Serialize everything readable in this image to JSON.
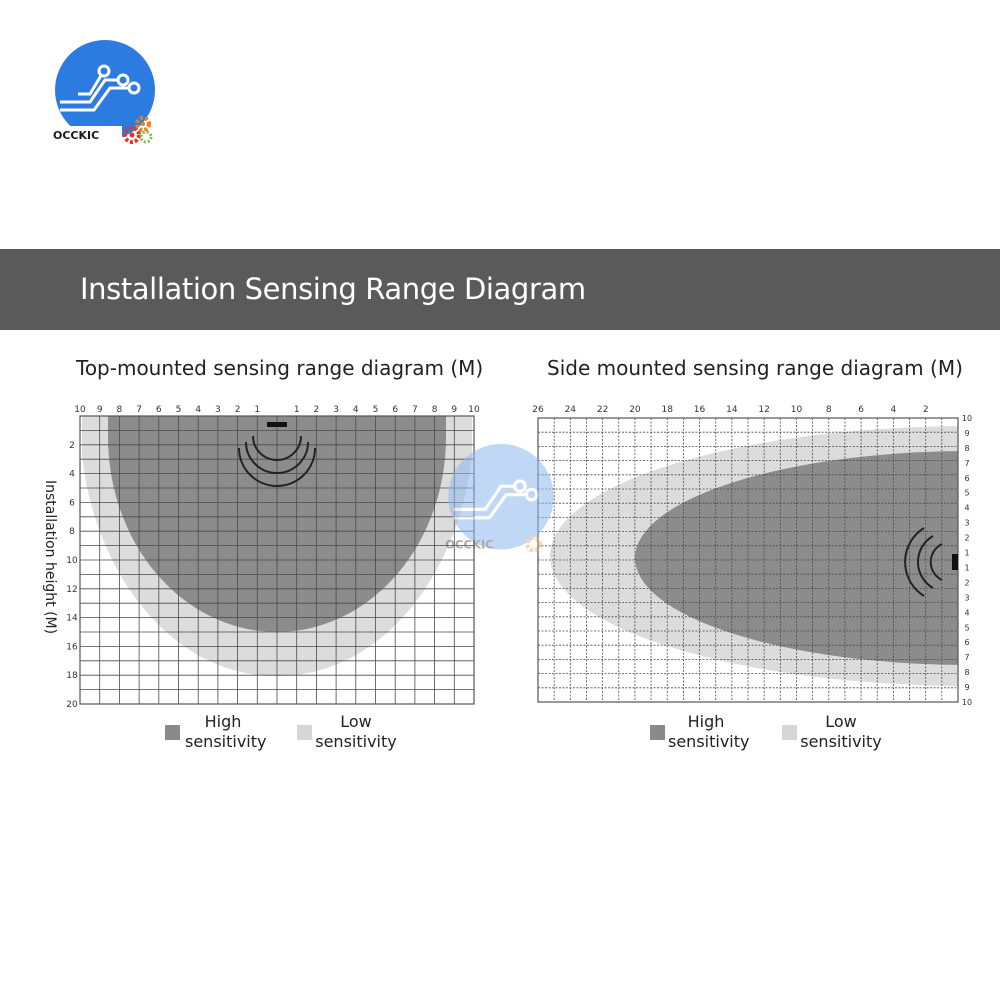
{
  "brand": {
    "name": "OCCKIC",
    "colors": {
      "blue": "#2b7be0",
      "orange": "#f07c1a",
      "red": "#e8322a",
      "green": "#7cc242"
    }
  },
  "banner": {
    "title": "Installation Sensing Range Diagram",
    "bg": "#5a5a5a"
  },
  "left_diagram": {
    "title": "Top-mounted sensing range diagram (M)",
    "y_axis_label": "Installation height (M)",
    "x_ticks": [
      "10",
      "9",
      "8",
      "7",
      "6",
      "5",
      "4",
      "3",
      "2",
      "1",
      "",
      "1",
      "2",
      "3",
      "4",
      "5",
      "6",
      "7",
      "8",
      "9",
      "10"
    ],
    "y_ticks": [
      "2",
      "4",
      "6",
      "8",
      "10",
      "12",
      "14",
      "16",
      "18",
      "20"
    ],
    "zones": {
      "high_radius_x": 8.5,
      "high_depth": 15,
      "low_radius_x": 9.5,
      "low_depth": 18
    }
  },
  "right_diagram": {
    "title": "Side mounted sensing range diagram (M)",
    "x_ticks": [
      "26",
      "24",
      "22",
      "20",
      "18",
      "16",
      "14",
      "12",
      "10",
      "8",
      "6",
      "4",
      "2"
    ],
    "y_ticks_top": [
      "10",
      "9",
      "8",
      "7",
      "6",
      "5",
      "4",
      "3",
      "2",
      "1"
    ],
    "y_ticks_bottom": [
      "1",
      "2",
      "3",
      "4",
      "5",
      "6",
      "7",
      "8",
      "9",
      "10"
    ]
  },
  "legend": {
    "high_line1": "High",
    "high_line2": "sensitivity",
    "low_line1": "Low",
    "low_line2": "sensitivity",
    "high_color": "#8a8a8a",
    "low_color": "#d6d6d6"
  }
}
